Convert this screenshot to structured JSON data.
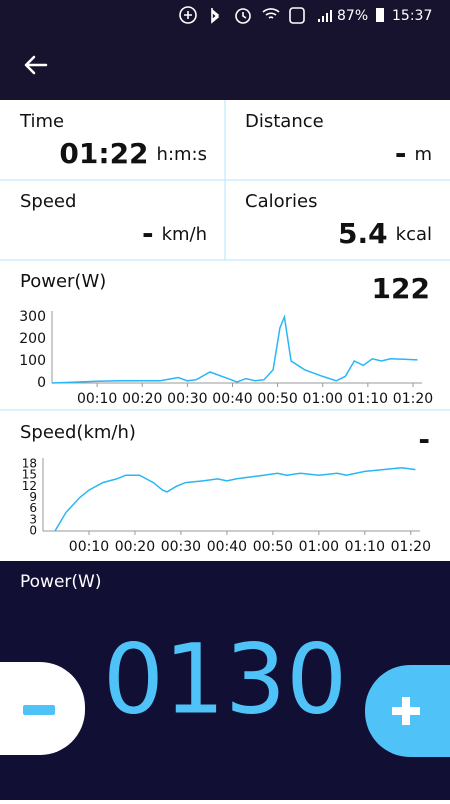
{
  "status_bar": {
    "battery": "87%",
    "time": "15:37"
  },
  "stats": [
    {
      "label": "Time",
      "value": "01:22",
      "unit": "h:m:s"
    },
    {
      "label": "Distance",
      "value": "-",
      "unit": "m"
    },
    {
      "label": "Speed",
      "value": "-",
      "unit": "km/h"
    },
    {
      "label": "Calories",
      "value": "5.4",
      "unit": "kcal"
    }
  ],
  "power_chart": {
    "type": "line",
    "title": "Power(W)",
    "current": 122,
    "color": "#29b6f6",
    "x": [
      0,
      5,
      10,
      15,
      20,
      24,
      28,
      30,
      32,
      35,
      39,
      41,
      43,
      45,
      47,
      49,
      50.5,
      51.5,
      53,
      56,
      60,
      63,
      65,
      67,
      69,
      71,
      73,
      75,
      78,
      81
    ],
    "values": [
      0,
      4,
      8,
      10,
      10,
      10,
      25,
      10,
      15,
      50,
      20,
      5,
      20,
      10,
      15,
      60,
      250,
      300,
      100,
      60,
      30,
      10,
      30,
      100,
      80,
      110,
      100,
      110,
      108,
      105
    ],
    "xlim": [
      0,
      82
    ],
    "ylim": [
      0,
      300
    ],
    "yticks": [
      0,
      100,
      200,
      300
    ],
    "xticks": [
      {
        "value": 10,
        "label": "00:10"
      },
      {
        "value": 20,
        "label": "00:20"
      },
      {
        "value": 30,
        "label": "00:30"
      },
      {
        "value": 40,
        "label": "00:40"
      },
      {
        "value": 50,
        "label": "00:50"
      },
      {
        "value": 60,
        "label": "01:00"
      },
      {
        "value": 70,
        "label": "01:10"
      },
      {
        "value": 80,
        "label": "01:20"
      }
    ]
  },
  "speed_chart": {
    "type": "line",
    "title": "Speed(km/h)",
    "current": "-",
    "color": "#29b6f6",
    "x": [
      2.6,
      5,
      8,
      10,
      13,
      16,
      18,
      21,
      24,
      26,
      27,
      29,
      31,
      35,
      38,
      40,
      42,
      45,
      48,
      51,
      53,
      56,
      60,
      64,
      66,
      70,
      74,
      78,
      81
    ],
    "values": [
      0,
      5,
      9,
      11,
      13,
      14,
      15,
      15,
      13,
      11,
      10.5,
      12,
      13,
      13.5,
      14,
      13.5,
      14,
      14.5,
      15,
      15.5,
      15,
      15.5,
      15,
      15.5,
      15,
      16,
      16.5,
      17,
      16.5
    ],
    "xlim": [
      0,
      82
    ],
    "ylim": [
      0,
      18
    ],
    "yticks": [
      0,
      3,
      6,
      9,
      12,
      15,
      18
    ],
    "xticks": [
      {
        "value": 10,
        "label": "00:10"
      },
      {
        "value": 20,
        "label": "00:20"
      },
      {
        "value": 30,
        "label": "00:30"
      },
      {
        "value": 40,
        "label": "00:40"
      },
      {
        "value": 50,
        "label": "00:50"
      },
      {
        "value": 60,
        "label": "01:00"
      },
      {
        "value": 70,
        "label": "01:10"
      },
      {
        "value": 80,
        "label": "01:20"
      }
    ]
  },
  "control": {
    "label": "Power(W)",
    "value": "0130"
  }
}
